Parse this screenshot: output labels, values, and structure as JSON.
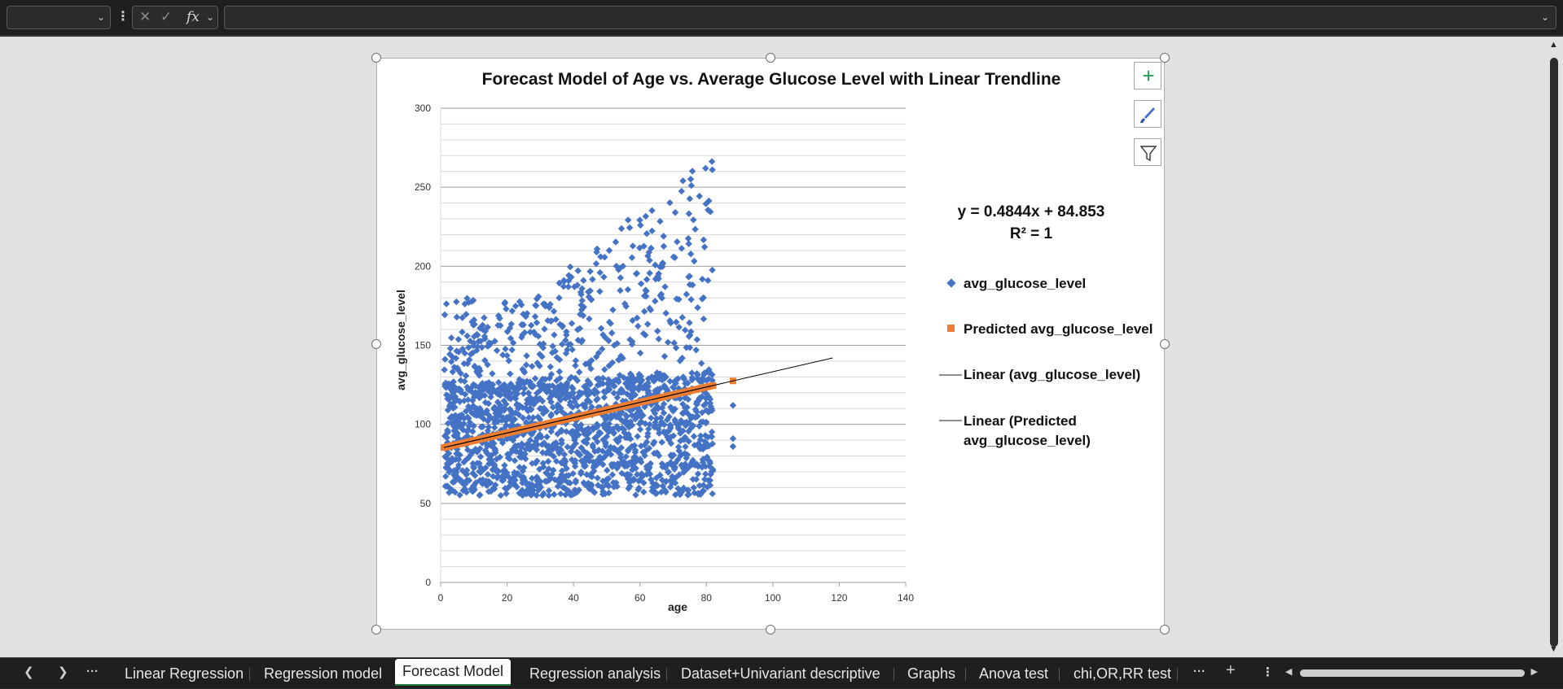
{
  "formula_bar": {
    "namebox_value": "",
    "formula_value": "",
    "cancel_icon": "✕",
    "enter_icon": "✓",
    "fx_label": "fx"
  },
  "chart": {
    "title": "Forecast Model of Age vs. Average Glucose Level with Linear Trendline",
    "equation": "y = 0.4844x + 84.853",
    "r_squared": "R² = 1",
    "side_buttons": [
      "chart-elements-icon",
      "chart-styles-icon",
      "chart-filters-icon"
    ],
    "legend": [
      {
        "label": "avg_glucose_level",
        "marker": "diamond",
        "color": "#4472C4"
      },
      {
        "label": "Predicted avg_glucose_level",
        "marker": "square",
        "color": "#ED7D31"
      },
      {
        "label": "Linear (avg_glucose_level)",
        "marker": "line",
        "color": "#000000"
      },
      {
        "label_line1": "Linear (Predicted",
        "label_line2": "avg_glucose_level)",
        "marker": "line",
        "color": "#000000"
      }
    ]
  },
  "chart_data": {
    "type": "scatter",
    "title": "Forecast Model of Age vs. Average Glucose Level with Linear Trendline",
    "xlabel": "age",
    "ylabel": "avg_glucose_level",
    "xlim": [
      0,
      140
    ],
    "ylim": [
      0,
      300
    ],
    "x_ticks": [
      "0",
      "20",
      "40",
      "60",
      "80",
      "100",
      "120",
      "140"
    ],
    "y_ticks": [
      "0",
      "50",
      "100",
      "150",
      "200",
      "250",
      "300"
    ],
    "grid": true,
    "legend_position": "right",
    "series": [
      {
        "name": "avg_glucose_level",
        "marker": "diamond",
        "color": "#4472C4",
        "description_range": {
          "x": [
            0.08,
            82
          ],
          "y": [
            55,
            272
          ]
        },
        "outliers": [
          {
            "x": 88,
            "y": 112
          },
          {
            "x": 88,
            "y": 91
          },
          {
            "x": 88,
            "y": 86
          }
        ]
      },
      {
        "name": "Predicted avg_glucose_level",
        "marker": "square",
        "color": "#ED7D31",
        "x": [
          1,
          10,
          20,
          30,
          40,
          50,
          60,
          70,
          82,
          88
        ],
        "y": [
          85.34,
          89.7,
          94.54,
          99.39,
          104.23,
          109.07,
          113.92,
          118.76,
          124.57,
          127.48
        ]
      }
    ],
    "trendlines": [
      {
        "name": "Linear (avg_glucose_level)",
        "slope": 0.4844,
        "intercept": 84.853,
        "x_range": [
          1,
          118
        ],
        "color": "#000000"
      },
      {
        "name": "Linear (Predicted avg_glucose_level)",
        "slope": 0.4844,
        "intercept": 84.853,
        "x_range": [
          1,
          82
        ],
        "color": "#000000"
      }
    ]
  },
  "sheet_tabs": {
    "tabs": [
      "Linear Regression",
      "Regression model",
      "Forecast Model",
      "Regression analysis",
      "Dataset+Univariant descriptive",
      "Graphs",
      "Anova test",
      "chi,OR,RR test"
    ],
    "active": "Forecast Model",
    "more_label": "···",
    "add_label": "+",
    "overflow_label": "⋮"
  }
}
